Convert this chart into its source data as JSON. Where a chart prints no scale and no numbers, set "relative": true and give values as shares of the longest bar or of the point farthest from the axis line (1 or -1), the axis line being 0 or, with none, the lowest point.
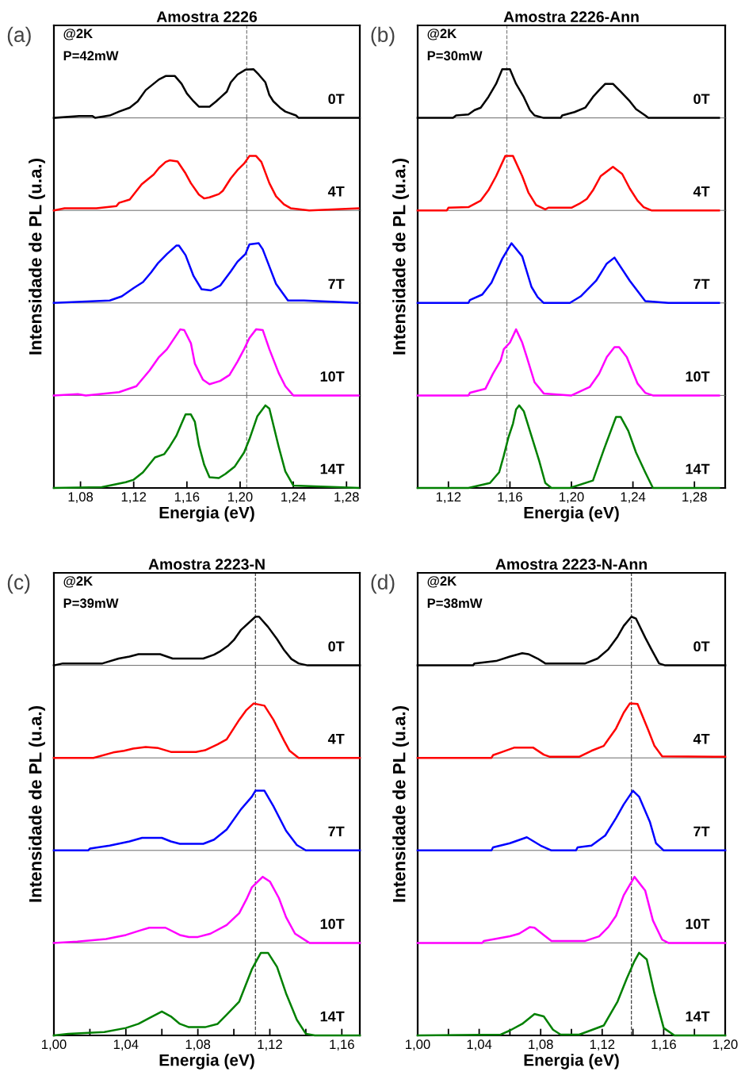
{
  "chart_data": [
    {
      "type": "line",
      "relative": true,
      "title": "Amostra 2226",
      "xlim": [
        1.06,
        1.29
      ],
      "tick_labels": false,
      "annotations": [
        "(a)",
        "@2K",
        "P=42mW",
        "0T"
      ],
      "ref_lines": [
        {
          "axis": "x",
          "value": 1.205,
          "color": "#808080",
          "line_style": "dashed"
        }
      ],
      "series": [
        {
          "color": "#000000",
          "x": [
            1.06,
            1.079,
            1.089,
            1.091,
            1.102,
            1.109,
            1.117,
            1.123,
            1.129,
            1.134,
            1.139,
            1.144,
            1.151,
            1.156,
            1.16,
            1.165,
            1.169,
            1.177,
            1.182,
            1.186,
            1.19,
            1.193,
            1.198,
            1.204,
            1.21,
            1.214,
            1.219,
            1.222,
            1.225,
            1.23,
            1.234,
            1.242,
            1.244,
            1.281,
            1.289
          ],
          "values": [
            0,
            0.04,
            0.04,
            0,
            0.05,
            0.13,
            0.21,
            0.34,
            0.57,
            0.68,
            0.79,
            0.86,
            0.86,
            0.7,
            0.5,
            0.34,
            0.23,
            0.23,
            0.34,
            0.44,
            0.54,
            0.73,
            0.89,
            0.99,
            1,
            0.89,
            0.73,
            0.47,
            0.34,
            0.21,
            0.13,
            0.05,
            0,
            0,
            0
          ]
        }
      ]
    },
    {
      "type": "line",
      "relative": true,
      "xlim": [
        1.06,
        1.29
      ],
      "tick_labels": false,
      "annotations": [
        "4T"
      ],
      "ref_lines": [
        {
          "axis": "x",
          "value": 1.205,
          "color": "#808080",
          "line_style": "dashed"
        }
      ],
      "series": [
        {
          "color": "#ff0000",
          "x": [
            1.06,
            1.068,
            1.092,
            1.107,
            1.109,
            1.117,
            1.126,
            1.135,
            1.139,
            1.144,
            1.147,
            1.153,
            1.159,
            1.163,
            1.169,
            1.173,
            1.177,
            1.184,
            1.187,
            1.193,
            1.198,
            1.203,
            1.207,
            1.212,
            1.216,
            1.222,
            1.227,
            1.233,
            1.238,
            1.252,
            1.289
          ],
          "values": [
            0,
            0.04,
            0.04,
            0.08,
            0.14,
            0.2,
            0.48,
            0.66,
            0.78,
            0.89,
            0.92,
            0.9,
            0.68,
            0.5,
            0.29,
            0.22,
            0.24,
            0.3,
            0.36,
            0.59,
            0.74,
            0.86,
            1,
            1,
            0.89,
            0.5,
            0.26,
            0.11,
            0.04,
            0,
            0.04
          ]
        }
      ]
    },
    {
      "type": "line",
      "relative": true,
      "xlim": [
        1.06,
        1.29
      ],
      "tick_labels": false,
      "ylabel": "Intensidade de PL (u.a.)",
      "annotations": [
        "7T"
      ],
      "ref_lines": [
        {
          "axis": "x",
          "value": 1.205,
          "color": "#808080",
          "line_style": "dashed"
        }
      ],
      "series": [
        {
          "color": "#0000ff",
          "x": [
            1.06,
            1.102,
            1.111,
            1.12,
            1.127,
            1.133,
            1.138,
            1.145,
            1.152,
            1.154,
            1.159,
            1.165,
            1.171,
            1.178,
            1.185,
            1.193,
            1.198,
            1.204,
            1.207,
            1.214,
            1.217,
            1.222,
            1.227,
            1.236,
            1.248,
            1.288
          ],
          "values": [
            0,
            0.04,
            0.11,
            0.25,
            0.35,
            0.51,
            0.66,
            0.82,
            0.96,
            0.96,
            0.8,
            0.45,
            0.23,
            0.21,
            0.29,
            0.53,
            0.69,
            0.82,
            0.98,
            1,
            0.9,
            0.61,
            0.32,
            0.04,
            0.04,
            0
          ]
        }
      ]
    },
    {
      "type": "line",
      "relative": true,
      "xlim": [
        1.06,
        1.29
      ],
      "tick_labels": false,
      "annotations": [
        "10T"
      ],
      "ref_lines": [
        {
          "axis": "x",
          "value": 1.205,
          "color": "#808080",
          "line_style": "dashed"
        }
      ],
      "series": [
        {
          "color": "#ff00ff",
          "x": [
            1.06,
            1.078,
            1.084,
            1.109,
            1.122,
            1.132,
            1.139,
            1.145,
            1.149,
            1.155,
            1.158,
            1.163,
            1.166,
            1.172,
            1.177,
            1.185,
            1.192,
            1.198,
            1.203,
            1.207,
            1.212,
            1.217,
            1.222,
            1.229,
            1.234,
            1.24,
            1.289
          ],
          "values": [
            0,
            0.02,
            0,
            0.05,
            0.14,
            0.38,
            0.58,
            0.7,
            0.82,
            1,
            0.99,
            0.79,
            0.48,
            0.24,
            0.17,
            0.22,
            0.31,
            0.51,
            0.7,
            0.87,
            1,
            0.99,
            0.7,
            0.34,
            0.14,
            0,
            0
          ]
        }
      ]
    },
    {
      "type": "line",
      "relative": true,
      "xlim": [
        1.06,
        1.29
      ],
      "tick_labels": "x",
      "xlabel": "Energia (eV)",
      "xticks": [
        {
          "value": 1.08,
          "label": "1,08"
        },
        {
          "value": 1.12,
          "label": "1,12"
        },
        {
          "value": 1.16,
          "label": "1,16"
        },
        {
          "value": 1.2,
          "label": "1,20"
        },
        {
          "value": 1.24,
          "label": "1,24"
        },
        {
          "value": 1.28,
          "label": "1,28"
        }
      ],
      "annotations": [
        "14T"
      ],
      "ref_lines": [
        {
          "axis": "x",
          "value": 1.205,
          "color": "#808080",
          "line_style": "dashed"
        }
      ],
      "series": [
        {
          "color": "#008000",
          "x": [
            1.06,
            1.096,
            1.114,
            1.12,
            1.127,
            1.136,
            1.143,
            1.147,
            1.152,
            1.156,
            1.159,
            1.163,
            1.166,
            1.169,
            1.173,
            1.177,
            1.184,
            1.189,
            1.196,
            1.203,
            1.207,
            1.213,
            1.219,
            1.222,
            1.229,
            1.234,
            1.24,
            1.289
          ],
          "values": [
            0,
            0.01,
            0.07,
            0.1,
            0.19,
            0.37,
            0.41,
            0.5,
            0.63,
            0.78,
            0.89,
            0.89,
            0.8,
            0.52,
            0.28,
            0.13,
            0.12,
            0.17,
            0.26,
            0.43,
            0.59,
            0.87,
            1,
            0.96,
            0.5,
            0.2,
            0.03,
            0
          ]
        }
      ]
    },
    {
      "type": "line",
      "relative": true,
      "title": "Amostra 2226-Ann",
      "xlim": [
        1.1,
        1.3
      ],
      "tick_labels": false,
      "annotations": [
        "(b)",
        "@2K",
        "P=30mW",
        "0T"
      ],
      "ref_lines": [
        {
          "axis": "x",
          "value": 1.158,
          "color": "#808080",
          "line_style": "dashed"
        }
      ],
      "series": [
        {
          "color": "#000000",
          "x": [
            1.1,
            1.123,
            1.125,
            1.133,
            1.137,
            1.141,
            1.146,
            1.151,
            1.155,
            1.16,
            1.164,
            1.169,
            1.173,
            1.176,
            1.182,
            1.193,
            1.194,
            1.202,
            1.209,
            1.214,
            1.218,
            1.222,
            1.227,
            1.232,
            1.238,
            1.242,
            1.248,
            1.25,
            1.296
          ],
          "values": [
            0,
            0,
            0.05,
            0.07,
            0.16,
            0.21,
            0.43,
            0.7,
            1,
            1,
            0.7,
            0.43,
            0.16,
            0.05,
            0,
            0,
            0.05,
            0.12,
            0.21,
            0.43,
            0.57,
            0.7,
            0.7,
            0.54,
            0.34,
            0.18,
            0.05,
            0,
            0
          ]
        }
      ]
    },
    {
      "type": "line",
      "relative": true,
      "xlim": [
        1.1,
        1.3
      ],
      "tick_labels": false,
      "annotations": [
        "4T"
      ],
      "ref_lines": [
        {
          "axis": "x",
          "value": 1.158,
          "color": "#808080",
          "line_style": "dashed"
        }
      ],
      "series": [
        {
          "color": "#ff0000",
          "x": [
            1.1,
            1.119,
            1.12,
            1.133,
            1.141,
            1.146,
            1.151,
            1.157,
            1.162,
            1.168,
            1.172,
            1.177,
            1.183,
            1.185,
            1.2,
            1.205,
            1.21,
            1.214,
            1.219,
            1.227,
            1.233,
            1.238,
            1.243,
            1.247,
            1.252,
            1.296
          ],
          "values": [
            0,
            0,
            0.05,
            0.06,
            0.18,
            0.37,
            0.63,
            1,
            1,
            0.63,
            0.33,
            0.1,
            0.02,
            0.05,
            0.05,
            0.12,
            0.21,
            0.37,
            0.63,
            0.8,
            0.67,
            0.4,
            0.18,
            0.06,
            0,
            0
          ]
        }
      ]
    },
    {
      "type": "line",
      "relative": true,
      "xlim": [
        1.1,
        1.3
      ],
      "tick_labels": false,
      "ylabel": "Intensidade de PL (u.a.)",
      "annotations": [
        "7T"
      ],
      "ref_lines": [
        {
          "axis": "x",
          "value": 1.158,
          "color": "#808080",
          "line_style": "dashed"
        }
      ],
      "series": [
        {
          "color": "#0000ff",
          "x": [
            1.1,
            1.133,
            1.134,
            1.142,
            1.148,
            1.155,
            1.161,
            1.168,
            1.174,
            1.178,
            1.182,
            1.199,
            1.206,
            1.216,
            1.223,
            1.228,
            1.238,
            1.248,
            1.263,
            1.296
          ],
          "values": [
            0,
            0,
            0.05,
            0.14,
            0.34,
            0.74,
            1,
            0.78,
            0.27,
            0.1,
            0,
            0,
            0.11,
            0.37,
            0.66,
            0.76,
            0.37,
            0.03,
            0,
            0
          ]
        }
      ]
    },
    {
      "type": "line",
      "relative": true,
      "xlim": [
        1.1,
        1.3
      ],
      "tick_labels": false,
      "annotations": [
        "10T"
      ],
      "ref_lines": [
        {
          "axis": "x",
          "value": 1.158,
          "color": "#808080",
          "line_style": "dashed"
        }
      ],
      "series": [
        {
          "color": "#ff00ff",
          "x": [
            1.1,
            1.133,
            1.134,
            1.144,
            1.149,
            1.154,
            1.156,
            1.16,
            1.164,
            1.168,
            1.171,
            1.176,
            1.182,
            1.2,
            1.212,
            1.218,
            1.223,
            1.228,
            1.231,
            1.236,
            1.243,
            1.248,
            1.253,
            1.296
          ],
          "values": [
            0,
            0,
            0.04,
            0.1,
            0.33,
            0.53,
            0.7,
            0.8,
            1,
            0.8,
            0.58,
            0.2,
            0.03,
            0,
            0.13,
            0.33,
            0.58,
            0.73,
            0.73,
            0.58,
            0.18,
            0.04,
            0,
            0
          ]
        }
      ]
    },
    {
      "type": "line",
      "relative": true,
      "xlim": [
        1.1,
        1.3
      ],
      "tick_labels": "x",
      "xlabel": "Energia (eV)",
      "xticks": [
        {
          "value": 1.12,
          "label": "1,12"
        },
        {
          "value": 1.16,
          "label": "1,16"
        },
        {
          "value": 1.2,
          "label": "1,20"
        },
        {
          "value": 1.24,
          "label": "1,24"
        },
        {
          "value": 1.28,
          "label": "1,28"
        }
      ],
      "annotations": [
        "14T"
      ],
      "ref_lines": [
        {
          "axis": "x",
          "value": 1.158,
          "color": "#808080",
          "line_style": "dashed"
        }
      ],
      "series": [
        {
          "color": "#008000",
          "x": [
            1.1,
            1.133,
            1.147,
            1.153,
            1.156,
            1.159,
            1.162,
            1.164,
            1.166,
            1.169,
            1.174,
            1.179,
            1.183,
            1.187,
            1.199,
            1.214,
            1.221,
            1.227,
            1.229,
            1.232,
            1.237,
            1.242,
            1.248,
            1.253,
            1.296
          ],
          "values": [
            0,
            0,
            0.06,
            0.19,
            0.39,
            0.61,
            0.78,
            0.95,
            1,
            0.93,
            0.63,
            0.33,
            0.06,
            0,
            0,
            0.09,
            0.46,
            0.76,
            0.86,
            0.86,
            0.69,
            0.43,
            0.19,
            0,
            0
          ]
        }
      ]
    },
    {
      "type": "line",
      "relative": true,
      "title": "Amostra 2223-N",
      "xlim": [
        1.0,
        1.17
      ],
      "tick_labels": false,
      "annotations": [
        "(c)",
        "@2K",
        "P=39mW",
        "0T"
      ],
      "ref_lines": [
        {
          "axis": "x",
          "value": 1.112,
          "color": "#404040",
          "line_style": "dashed"
        }
      ],
      "series": [
        {
          "color": "#000000",
          "x": [
            1.0,
            1.005,
            1.027,
            1.036,
            1.042,
            1.047,
            1.059,
            1.066,
            1.083,
            1.089,
            1.092,
            1.097,
            1.1,
            1.104,
            1.112,
            1.114,
            1.119,
            1.124,
            1.128,
            1.132,
            1.136,
            1.141,
            1.17
          ],
          "values": [
            0,
            0.04,
            0.04,
            0.14,
            0.18,
            0.23,
            0.23,
            0.14,
            0.14,
            0.22,
            0.28,
            0.41,
            0.52,
            0.73,
            1,
            1,
            0.79,
            0.54,
            0.31,
            0.13,
            0.04,
            0,
            0
          ]
        }
      ]
    },
    {
      "type": "line",
      "relative": true,
      "xlim": [
        1.0,
        1.17
      ],
      "tick_labels": false,
      "annotations": [
        "4T"
      ],
      "ref_lines": [
        {
          "axis": "x",
          "value": 1.112,
          "color": "#404040",
          "line_style": "dashed"
        }
      ],
      "series": [
        {
          "color": "#ff0000",
          "x": [
            1.0,
            1.022,
            1.033,
            1.039,
            1.044,
            1.051,
            1.058,
            1.065,
            1.079,
            1.084,
            1.091,
            1.096,
            1.103,
            1.107,
            1.111,
            1.117,
            1.122,
            1.128,
            1.131,
            1.136,
            1.17
          ],
          "values": [
            0,
            0,
            0.1,
            0.13,
            0.17,
            0.2,
            0.18,
            0.11,
            0.11,
            0.14,
            0.25,
            0.34,
            0.7,
            0.88,
            1,
            0.96,
            0.7,
            0.31,
            0.13,
            0,
            0
          ]
        }
      ]
    },
    {
      "type": "line",
      "relative": true,
      "xlim": [
        1.0,
        1.17
      ],
      "tick_labels": false,
      "ylabel": "Intensidade de PL (u.a.)",
      "annotations": [
        "7T"
      ],
      "ref_lines": [
        {
          "axis": "x",
          "value": 1.112,
          "color": "#404040",
          "line_style": "dashed"
        }
      ],
      "series": [
        {
          "color": "#0000ff",
          "x": [
            1.0,
            1.019,
            1.02,
            1.031,
            1.042,
            1.049,
            1.06,
            1.065,
            1.07,
            1.083,
            1.089,
            1.096,
            1.104,
            1.11,
            1.112,
            1.117,
            1.122,
            1.129,
            1.135,
            1.14,
            1.17
          ],
          "values": [
            0,
            0,
            0.03,
            0.08,
            0.15,
            0.21,
            0.21,
            0.15,
            0.11,
            0.11,
            0.18,
            0.35,
            0.69,
            0.9,
            1,
            1,
            0.74,
            0.33,
            0.09,
            0,
            0
          ]
        }
      ]
    },
    {
      "type": "line",
      "relative": true,
      "xlim": [
        1.0,
        1.17
      ],
      "tick_labels": false,
      "annotations": [
        "10T"
      ],
      "ref_lines": [
        {
          "axis": "x",
          "value": 1.112,
          "color": "#404040",
          "line_style": "dashed"
        }
      ],
      "series": [
        {
          "color": "#ff00ff",
          "x": [
            1.0,
            1.013,
            1.029,
            1.04,
            1.048,
            1.053,
            1.062,
            1.07,
            1.075,
            1.08,
            1.087,
            1.096,
            1.103,
            1.107,
            1.11,
            1.116,
            1.12,
            1.125,
            1.129,
            1.134,
            1.142,
            1.17
          ],
          "values": [
            0,
            0.02,
            0.06,
            0.12,
            0.19,
            0.23,
            0.23,
            0.12,
            0.09,
            0.09,
            0.14,
            0.27,
            0.45,
            0.66,
            0.84,
            1,
            0.93,
            0.68,
            0.39,
            0.14,
            0,
            0
          ]
        }
      ]
    },
    {
      "type": "line",
      "relative": true,
      "xlim": [
        1.0,
        1.17
      ],
      "tick_labels": "x",
      "xlabel": "Energia (eV)",
      "xticks": [
        {
          "value": 1.0,
          "label": "1,00"
        },
        {
          "value": 1.02,
          "label": null
        },
        {
          "value": 1.04,
          "label": "1,04"
        },
        {
          "value": 1.06,
          "label": null
        },
        {
          "value": 1.08,
          "label": "1,08"
        },
        {
          "value": 1.1,
          "label": null
        },
        {
          "value": 1.12,
          "label": "1,12"
        },
        {
          "value": 1.14,
          "label": null
        },
        {
          "value": 1.16,
          "label": "1,16"
        }
      ],
      "annotations": [
        "14T"
      ],
      "ref_lines": [
        {
          "axis": "x",
          "value": 1.112,
          "color": "#404040",
          "line_style": "dashed"
        }
      ],
      "series": [
        {
          "color": "#008000",
          "x": [
            1.0,
            1.008,
            1.028,
            1.04,
            1.047,
            1.053,
            1.06,
            1.065,
            1.07,
            1.075,
            1.084,
            1.091,
            1.096,
            1.103,
            1.11,
            1.115,
            1.119,
            1.124,
            1.129,
            1.135,
            1.14,
            1.145,
            1.17
          ],
          "values": [
            0,
            0.02,
            0.04,
            0.09,
            0.14,
            0.21,
            0.29,
            0.23,
            0.14,
            0.1,
            0.1,
            0.14,
            0.25,
            0.41,
            0.8,
            1,
            1,
            0.83,
            0.51,
            0.19,
            0.02,
            0,
            0
          ]
        }
      ]
    },
    {
      "type": "line",
      "relative": true,
      "title": "Amostra 2223-N-Ann",
      "xlim": [
        1.0,
        1.2
      ],
      "tick_labels": false,
      "annotations": [
        "(d)",
        "@2K",
        "P=38mW",
        "0T"
      ],
      "ref_lines": [
        {
          "axis": "x",
          "value": 1.139,
          "color": "#404040",
          "line_style": "dashed"
        }
      ],
      "series": [
        {
          "color": "#000000",
          "x": [
            1.0,
            1.036,
            1.037,
            1.051,
            1.06,
            1.068,
            1.072,
            1.078,
            1.083,
            1.109,
            1.117,
            1.124,
            1.13,
            1.134,
            1.139,
            1.142,
            1.148,
            1.152,
            1.157,
            1.161,
            1.2
          ],
          "values": [
            0,
            0,
            0.04,
            0.09,
            0.18,
            0.25,
            0.23,
            0.14,
            0.04,
            0.04,
            0.14,
            0.33,
            0.59,
            0.81,
            1,
            0.96,
            0.57,
            0.33,
            0.04,
            0,
            0
          ]
        }
      ]
    },
    {
      "type": "line",
      "relative": true,
      "xlim": [
        1.0,
        1.2
      ],
      "tick_labels": false,
      "annotations": [
        "4T"
      ],
      "ref_lines": [
        {
          "axis": "x",
          "value": 1.139,
          "color": "#404040",
          "line_style": "dashed"
        }
      ],
      "series": [
        {
          "color": "#ff0000",
          "x": [
            1.0,
            1.048,
            1.049,
            1.054,
            1.063,
            1.075,
            1.082,
            1.086,
            1.105,
            1.113,
            1.121,
            1.129,
            1.134,
            1.138,
            1.143,
            1.15,
            1.154,
            1.159,
            1.193,
            1.2
          ],
          "values": [
            0,
            0,
            0.05,
            0.1,
            0.19,
            0.19,
            0.06,
            0.02,
            0.02,
            0.13,
            0.22,
            0.54,
            0.83,
            1,
            0.99,
            0.51,
            0.22,
            0.03,
            0.02,
            0.02
          ]
        }
      ]
    },
    {
      "type": "line",
      "relative": true,
      "xlim": [
        1.0,
        1.2
      ],
      "tick_labels": false,
      "ylabel": "Intensidade de PL (u.a.)",
      "annotations": [
        "7T"
      ],
      "ref_lines": [
        {
          "axis": "x",
          "value": 1.139,
          "color": "#404040",
          "line_style": "dashed"
        }
      ],
      "series": [
        {
          "color": "#0000ff",
          "x": [
            1.0,
            1.048,
            1.049,
            1.06,
            1.071,
            1.08,
            1.087,
            1.103,
            1.104,
            1.113,
            1.122,
            1.129,
            1.134,
            1.14,
            1.144,
            1.151,
            1.155,
            1.16,
            1.2
          ],
          "values": [
            0,
            0,
            0.05,
            0.12,
            0.22,
            0.08,
            0,
            0,
            0.05,
            0.08,
            0.25,
            0.54,
            0.77,
            1,
            0.9,
            0.48,
            0.12,
            0,
            0
          ]
        }
      ]
    },
    {
      "type": "line",
      "relative": true,
      "xlim": [
        1.0,
        1.2
      ],
      "tick_labels": false,
      "annotations": [
        "10T"
      ],
      "ref_lines": [
        {
          "axis": "x",
          "value": 1.139,
          "color": "#404040",
          "line_style": "dashed"
        }
      ],
      "series": [
        {
          "color": "#ff00ff",
          "x": [
            1.0,
            1.042,
            1.043,
            1.06,
            1.066,
            1.073,
            1.076,
            1.082,
            1.087,
            1.109,
            1.118,
            1.124,
            1.129,
            1.134,
            1.141,
            1.148,
            1.153,
            1.159,
            1.163,
            1.2
          ],
          "values": [
            0,
            0,
            0.03,
            0.1,
            0.14,
            0.24,
            0.23,
            0.12,
            0.03,
            0.03,
            0.1,
            0.24,
            0.41,
            0.72,
            1,
            0.79,
            0.34,
            0.05,
            0,
            0
          ]
        }
      ]
    },
    {
      "type": "line",
      "relative": true,
      "xlim": [
        1.0,
        1.2
      ],
      "tick_labels": "x",
      "xlabel": "Energia (eV)",
      "xticks": [
        {
          "value": 1.0,
          "label": "1,00"
        },
        {
          "value": 1.02,
          "label": null
        },
        {
          "value": 1.04,
          "label": "1,04"
        },
        {
          "value": 1.06,
          "label": null
        },
        {
          "value": 1.08,
          "label": "1,08"
        },
        {
          "value": 1.1,
          "label": null
        },
        {
          "value": 1.12,
          "label": "1,12"
        },
        {
          "value": 1.14,
          "label": null
        },
        {
          "value": 1.16,
          "label": "1,16"
        },
        {
          "value": 1.18,
          "label": null
        },
        {
          "value": 1.2,
          "label": "1,20"
        }
      ],
      "annotations": [
        "14T"
      ],
      "ref_lines": [
        {
          "axis": "x",
          "value": 1.139,
          "color": "#404040",
          "line_style": "dashed"
        }
      ],
      "series": [
        {
          "color": "#008000",
          "x": [
            1.0,
            1.054,
            1.06,
            1.068,
            1.076,
            1.082,
            1.088,
            1.093,
            1.105,
            1.111,
            1.121,
            1.13,
            1.136,
            1.141,
            1.144,
            1.149,
            1.154,
            1.16,
            1.167,
            1.2
          ],
          "values": [
            0,
            0.01,
            0.06,
            0.14,
            0.26,
            0.23,
            0.07,
            0.01,
            0.01,
            0.05,
            0.12,
            0.41,
            0.69,
            0.9,
            1,
            0.92,
            0.51,
            0.09,
            0,
            0
          ]
        }
      ]
    }
  ]
}
